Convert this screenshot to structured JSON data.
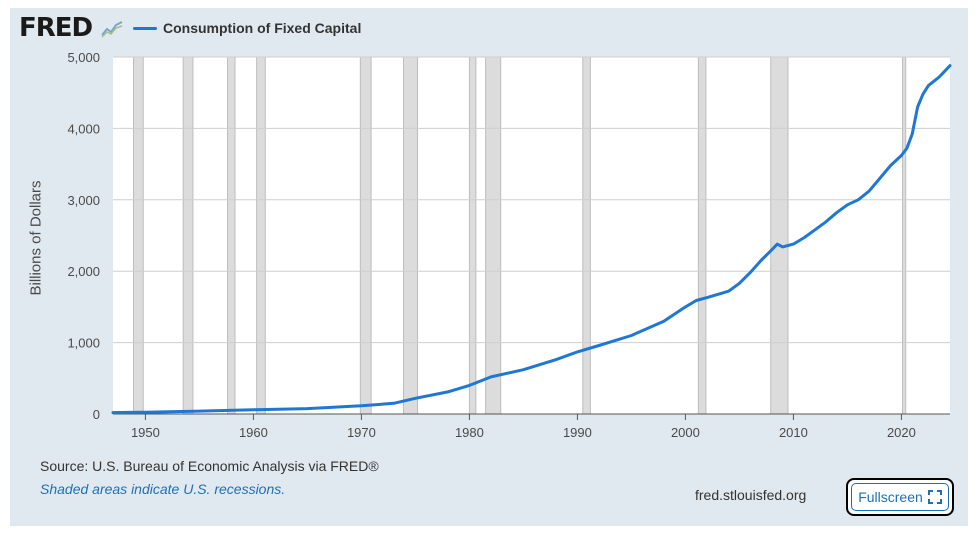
{
  "header": {
    "logo_text": "FRED",
    "legend_label": "Consumption of Fixed Capital",
    "series_color": "#1f77d4"
  },
  "chart_data": {
    "type": "line",
    "title": "Consumption of Fixed Capital",
    "xlabel": "",
    "ylabel": "Billions of Dollars",
    "xlim": [
      1947,
      2024.5
    ],
    "ylim": [
      0,
      5000
    ],
    "x_ticks": [
      1950,
      1960,
      1970,
      1980,
      1990,
      2000,
      2010,
      2020
    ],
    "y_ticks": [
      0,
      1000,
      2000,
      3000,
      4000,
      5000
    ],
    "y_tick_labels": [
      "0",
      "1,000",
      "2,000",
      "3,000",
      "4,000",
      "5,000"
    ],
    "grid": true,
    "recessions": [
      [
        1948.9,
        1949.8
      ],
      [
        1953.5,
        1954.4
      ],
      [
        1957.6,
        1958.3
      ],
      [
        1960.3,
        1961.1
      ],
      [
        1969.9,
        1970.9
      ],
      [
        1973.9,
        1975.2
      ],
      [
        1980.0,
        1980.6
      ],
      [
        1981.5,
        1982.9
      ],
      [
        1990.5,
        1991.2
      ],
      [
        2001.2,
        2001.9
      ],
      [
        2007.9,
        2009.5
      ],
      [
        2020.1,
        2020.4
      ]
    ],
    "series": [
      {
        "name": "Consumption of Fixed Capital",
        "x": [
          1947,
          1950,
          1955,
          1960,
          1965,
          1970,
          1973,
          1975,
          1978,
          1980,
          1982,
          1985,
          1988,
          1990,
          1992,
          1995,
          1998,
          2000,
          2001,
          2002,
          2004,
          2005,
          2006,
          2007,
          2008,
          2008.5,
          2009,
          2010,
          2011,
          2012,
          2013,
          2014,
          2015,
          2016,
          2017,
          2018,
          2019,
          2020,
          2020.5,
          2021,
          2021.5,
          2022,
          2022.5,
          2023,
          2023.5,
          2024,
          2024.5
        ],
        "values": [
          20,
          25,
          40,
          60,
          75,
          115,
          150,
          220,
          310,
          400,
          520,
          620,
          760,
          870,
          960,
          1100,
          1300,
          1500,
          1590,
          1630,
          1720,
          1830,
          1980,
          2150,
          2300,
          2380,
          2340,
          2380,
          2470,
          2580,
          2690,
          2820,
          2930,
          3000,
          3120,
          3300,
          3480,
          3620,
          3720,
          3920,
          4300,
          4480,
          4600,
          4660,
          4720,
          4800,
          4880
        ]
      }
    ]
  },
  "footer": {
    "source": "Source: U.S. Bureau of Economic Analysis via FRED®",
    "note": "Shaded areas indicate U.S. recessions.",
    "site": "fred.stlouisfed.org",
    "fullscreen_label": "Fullscreen"
  }
}
